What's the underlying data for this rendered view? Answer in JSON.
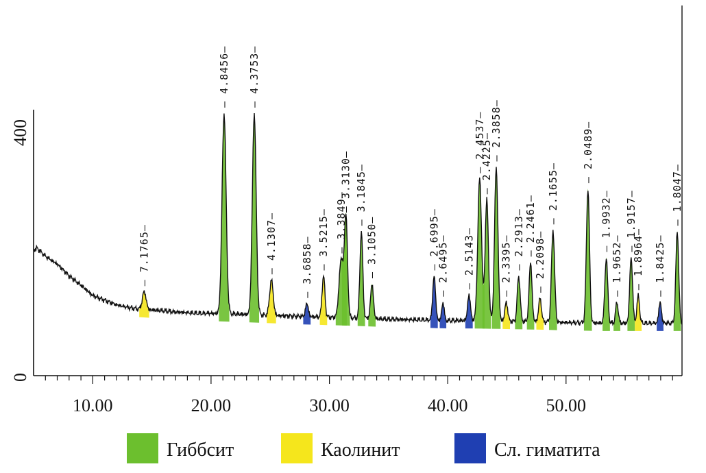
{
  "chart_data": {
    "type": "line",
    "title": "",
    "xlabel": "",
    "ylabel": "",
    "xlim": [
      5.0,
      59.8
    ],
    "ylim": [
      0,
      400
    ],
    "x_ticks": [
      "10.00",
      "20.00",
      "30.00",
      "40.00",
      "50.00"
    ],
    "y_ticks": [
      "0",
      "400"
    ],
    "baseline": [
      [
        5.0,
        192
      ],
      [
        5.3,
        194
      ],
      [
        6,
        182
      ],
      [
        7,
        170
      ],
      [
        8,
        152
      ],
      [
        9,
        138
      ],
      [
        10,
        122
      ],
      [
        11,
        115
      ],
      [
        12,
        108
      ],
      [
        13,
        104
      ],
      [
        14,
        101
      ],
      [
        15,
        100
      ],
      [
        16,
        99
      ],
      [
        17,
        97
      ],
      [
        18,
        96
      ],
      [
        19,
        95
      ],
      [
        20,
        95
      ],
      [
        22,
        94
      ],
      [
        25,
        92
      ],
      [
        28,
        90
      ],
      [
        30,
        89
      ],
      [
        32,
        88
      ],
      [
        35,
        86
      ],
      [
        38,
        85
      ],
      [
        40,
        84
      ],
      [
        42,
        84
      ],
      [
        45,
        83
      ],
      [
        48,
        82
      ],
      [
        50,
        81
      ],
      [
        53,
        80
      ],
      [
        56,
        80
      ],
      [
        58,
        80
      ],
      [
        59.8,
        80
      ]
    ],
    "peaks": [
      {
        "x": 14.35,
        "y": 128,
        "w": 0.16,
        "phase": "kaolinite",
        "label": "7.1765"
      },
      {
        "x": 21.1,
        "y": 400,
        "w": 0.17,
        "phase": "gibbsite",
        "label": "4.8456"
      },
      {
        "x": 23.65,
        "y": 400,
        "w": 0.16,
        "phase": "gibbsite",
        "label": "4.3753"
      },
      {
        "x": 25.1,
        "y": 146,
        "w": 0.15,
        "phase": "kaolinite",
        "label": "4.1307"
      },
      {
        "x": 28.1,
        "y": 110,
        "w": 0.12,
        "phase": "hematite",
        "label": "3.6858"
      },
      {
        "x": 29.5,
        "y": 152,
        "w": 0.12,
        "phase": "kaolinite",
        "label": "3.5215"
      },
      {
        "x": 31.0,
        "y": 178,
        "w": 0.18,
        "phase": "gibbsite",
        "label": "3.3849"
      },
      {
        "x": 31.4,
        "y": 240,
        "w": 0.13,
        "phase": "gibbsite",
        "label": "3.3130"
      },
      {
        "x": 32.7,
        "y": 220,
        "w": 0.12,
        "phase": "gibbsite",
        "label": "3.1845"
      },
      {
        "x": 33.6,
        "y": 140,
        "w": 0.12,
        "phase": "gibbsite",
        "label": "3.1050"
      },
      {
        "x": 38.85,
        "y": 152,
        "w": 0.12,
        "phase": "hematite",
        "label": "2.6995"
      },
      {
        "x": 39.6,
        "y": 112,
        "w": 0.1,
        "phase": "hematite",
        "label": "2.6495"
      },
      {
        "x": 41.8,
        "y": 123,
        "w": 0.12,
        "phase": "hematite",
        "label": "2.5143"
      },
      {
        "x": 42.7,
        "y": 300,
        "w": 0.16,
        "phase": "gibbsite",
        "label": "2.4537"
      },
      {
        "x": 43.3,
        "y": 268,
        "w": 0.14,
        "phase": "gibbsite",
        "label": "2.4225"
      },
      {
        "x": 44.1,
        "y": 318,
        "w": 0.14,
        "phase": "gibbsite",
        "label": "2.3858"
      },
      {
        "x": 44.95,
        "y": 112,
        "w": 0.12,
        "phase": "kaolinite",
        "label": "2.3395"
      },
      {
        "x": 46.0,
        "y": 152,
        "w": 0.12,
        "phase": "gibbsite",
        "label": "2.2913"
      },
      {
        "x": 47.0,
        "y": 173,
        "w": 0.12,
        "phase": "gibbsite",
        "label": "2.2461"
      },
      {
        "x": 47.8,
        "y": 118,
        "w": 0.12,
        "phase": "kaolinite",
        "label": "2.2098"
      },
      {
        "x": 48.9,
        "y": 222,
        "w": 0.13,
        "phase": "gibbsite",
        "label": "2.1655"
      },
      {
        "x": 51.85,
        "y": 285,
        "w": 0.13,
        "phase": "gibbsite",
        "label": "2.0489"
      },
      {
        "x": 53.4,
        "y": 180,
        "w": 0.12,
        "phase": "gibbsite",
        "label": "1.9932"
      },
      {
        "x": 54.3,
        "y": 112,
        "w": 0.11,
        "phase": "gibbsite",
        "label": "1.9652"
      },
      {
        "x": 55.5,
        "y": 180,
        "w": 0.12,
        "phase": "gibbsite",
        "label": "1.9157"
      },
      {
        "x": 56.1,
        "y": 122,
        "w": 0.11,
        "phase": "kaolinite",
        "label": "1.8964"
      },
      {
        "x": 57.95,
        "y": 112,
        "w": 0.11,
        "phase": "hematite",
        "label": "1.8425"
      },
      {
        "x": 59.4,
        "y": 220,
        "w": 0.12,
        "phase": "gibbsite",
        "label": "1.8047"
      }
    ],
    "phase_colors": {
      "gibbsite": "#6cbf2e",
      "kaolinite": "#f5e61c",
      "hematite": "#1f3fb2"
    },
    "legend": [
      {
        "phase": "gibbsite",
        "label": "Гиббсит",
        "color": "#6cbf2e"
      },
      {
        "phase": "kaolinite",
        "label": "Каолинит",
        "color": "#f5e61c"
      },
      {
        "phase": "hematite",
        "label": "Сл. гиматита",
        "color": "#1f3fb2"
      }
    ],
    "grid": false,
    "legend_position": "bottom"
  }
}
